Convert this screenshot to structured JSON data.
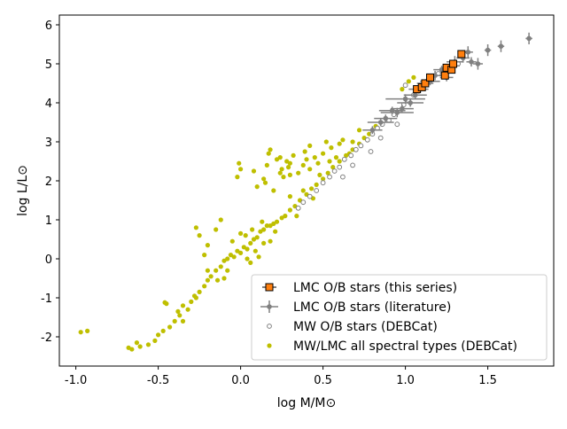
{
  "chart_data": {
    "type": "scatter",
    "title": "",
    "xlabel": "log M/M⊙",
    "ylabel": "log L/L⊙",
    "xlim": [
      -1.1,
      1.9
    ],
    "ylim": [
      -2.75,
      6.25
    ],
    "grid": false,
    "legend_position": "lower-right",
    "x_ticks": [
      {
        "value": -1.0,
        "label": "-1.0"
      },
      {
        "value": -0.5,
        "label": "-0.5"
      },
      {
        "value": 0.0,
        "label": "0.0"
      },
      {
        "value": 0.5,
        "label": "0.5"
      },
      {
        "value": 1.0,
        "label": "1.0"
      },
      {
        "value": 1.5,
        "label": "1.5"
      }
    ],
    "y_ticks": [
      {
        "value": -2,
        "label": "-2"
      },
      {
        "value": -1,
        "label": "-1"
      },
      {
        "value": 0,
        "label": "0"
      },
      {
        "value": 1,
        "label": "1"
      },
      {
        "value": 2,
        "label": "2"
      },
      {
        "value": 3,
        "label": "3"
      },
      {
        "value": 4,
        "label": "4"
      },
      {
        "value": 5,
        "label": "5"
      },
      {
        "value": 6,
        "label": "6"
      }
    ],
    "series": [
      {
        "name": "MW/LMC all spectral types (DEBCat)",
        "marker": "dot",
        "color": "#bfbf00",
        "points": [
          [
            -0.97,
            -1.88
          ],
          [
            -0.93,
            -1.85
          ],
          [
            -0.68,
            -2.28
          ],
          [
            -0.66,
            -2.32
          ],
          [
            -0.63,
            -2.15
          ],
          [
            -0.61,
            -2.25
          ],
          [
            -0.56,
            -2.2
          ],
          [
            -0.52,
            -2.1
          ],
          [
            -0.5,
            -1.95
          ],
          [
            -0.47,
            -1.85
          ],
          [
            -0.46,
            -1.12
          ],
          [
            -0.45,
            -1.15
          ],
          [
            -0.43,
            -1.75
          ],
          [
            -0.4,
            -1.6
          ],
          [
            -0.37,
            -1.45
          ],
          [
            -0.35,
            -1.2
          ],
          [
            -0.32,
            -1.3
          ],
          [
            -0.3,
            -1.1
          ],
          [
            -0.28,
            -0.95
          ],
          [
            -0.25,
            -0.85
          ],
          [
            -0.22,
            -0.7
          ],
          [
            -0.2,
            -0.55
          ],
          [
            -0.18,
            -0.45
          ],
          [
            -0.15,
            -0.3
          ],
          [
            -0.14,
            -0.55
          ],
          [
            -0.12,
            -0.2
          ],
          [
            -0.1,
            -0.05
          ],
          [
            -0.08,
            0.0
          ],
          [
            -0.06,
            0.1
          ],
          [
            -0.04,
            0.05
          ],
          [
            -0.02,
            0.2
          ],
          [
            0.0,
            0.15
          ],
          [
            0.02,
            0.3
          ],
          [
            0.04,
            0.25
          ],
          [
            0.06,
            0.4
          ],
          [
            0.08,
            0.5
          ],
          [
            0.1,
            0.55
          ],
          [
            0.12,
            0.7
          ],
          [
            0.14,
            0.75
          ],
          [
            0.16,
            0.85
          ],
          [
            0.18,
            0.85
          ],
          [
            0.2,
            0.9
          ],
          [
            0.22,
            0.95
          ],
          [
            0.25,
            1.05
          ],
          [
            0.27,
            1.1
          ],
          [
            0.3,
            1.25
          ],
          [
            0.33,
            1.35
          ],
          [
            0.36,
            1.5
          ],
          [
            0.4,
            1.65
          ],
          [
            0.43,
            1.8
          ],
          [
            0.46,
            1.9
          ],
          [
            0.5,
            2.05
          ],
          [
            0.53,
            2.2
          ],
          [
            0.56,
            2.35
          ],
          [
            0.6,
            2.5
          ],
          [
            0.64,
            2.65
          ],
          [
            0.68,
            2.8
          ],
          [
            0.72,
            2.95
          ],
          [
            0.78,
            3.2
          ],
          [
            0.82,
            3.4
          ],
          [
            -0.2,
            0.35
          ],
          [
            -0.25,
            0.6
          ],
          [
            -0.27,
            0.8
          ],
          [
            -0.22,
            0.1
          ],
          [
            -0.05,
            0.45
          ],
          [
            0.0,
            0.65
          ],
          [
            -0.15,
            0.75
          ],
          [
            -0.12,
            1.0
          ],
          [
            -0.01,
            2.45
          ],
          [
            0.0,
            2.3
          ],
          [
            -0.02,
            2.1
          ],
          [
            0.08,
            2.25
          ],
          [
            0.1,
            1.85
          ],
          [
            0.14,
            2.05
          ],
          [
            0.15,
            1.95
          ],
          [
            0.16,
            2.4
          ],
          [
            0.17,
            2.7
          ],
          [
            0.18,
            2.8
          ],
          [
            0.2,
            1.75
          ],
          [
            0.22,
            2.55
          ],
          [
            0.24,
            2.6
          ],
          [
            0.25,
            2.3
          ],
          [
            0.26,
            2.1
          ],
          [
            0.28,
            2.5
          ],
          [
            0.29,
            2.35
          ],
          [
            0.3,
            2.15
          ],
          [
            0.32,
            2.65
          ],
          [
            0.35,
            2.2
          ],
          [
            0.38,
            2.4
          ],
          [
            0.4,
            2.55
          ],
          [
            0.42,
            2.3
          ],
          [
            0.45,
            2.6
          ],
          [
            0.47,
            2.45
          ],
          [
            0.5,
            2.7
          ],
          [
            0.52,
            3.0
          ],
          [
            0.55,
            2.85
          ],
          [
            0.58,
            2.6
          ],
          [
            0.6,
            2.95
          ],
          [
            0.62,
            3.05
          ],
          [
            0.68,
            3.0
          ],
          [
            0.72,
            3.3
          ],
          [
            0.98,
            4.35
          ],
          [
            1.02,
            4.55
          ],
          [
            1.05,
            4.65
          ],
          [
            -0.08,
            -0.3
          ],
          [
            -0.1,
            -0.5
          ],
          [
            0.04,
            0.0
          ],
          [
            0.06,
            -0.1
          ],
          [
            0.09,
            0.2
          ],
          [
            0.11,
            0.05
          ],
          [
            0.14,
            0.4
          ],
          [
            0.18,
            0.45
          ],
          [
            0.03,
            0.6
          ],
          [
            0.07,
            0.75
          ],
          [
            0.13,
            0.95
          ],
          [
            0.21,
            0.7
          ],
          [
            -0.35,
            -1.6
          ],
          [
            -0.38,
            -1.35
          ],
          [
            -0.27,
            -1.0
          ],
          [
            -0.2,
            -0.3
          ],
          [
            0.3,
            1.6
          ],
          [
            0.34,
            1.1
          ],
          [
            0.38,
            1.75
          ],
          [
            0.44,
            1.55
          ],
          [
            0.48,
            2.15
          ],
          [
            0.54,
            2.5
          ],
          [
            0.66,
            2.7
          ],
          [
            0.75,
            3.1
          ],
          [
            0.42,
            2.9
          ],
          [
            0.39,
            2.75
          ],
          [
            0.3,
            2.45
          ],
          [
            0.24,
            2.2
          ]
        ]
      },
      {
        "name": "MW O/B stars (DEBCat)",
        "marker": "open-circle",
        "color": "#808080",
        "points": [
          [
            0.35,
            1.3
          ],
          [
            0.38,
            1.45
          ],
          [
            0.42,
            1.6
          ],
          [
            0.46,
            1.75
          ],
          [
            0.5,
            1.95
          ],
          [
            0.54,
            2.1
          ],
          [
            0.57,
            2.25
          ],
          [
            0.6,
            2.35
          ],
          [
            0.63,
            2.55
          ],
          [
            0.67,
            2.65
          ],
          [
            0.7,
            2.8
          ],
          [
            0.73,
            2.9
          ],
          [
            0.77,
            3.05
          ],
          [
            0.8,
            3.2
          ],
          [
            0.83,
            3.35
          ],
          [
            0.86,
            3.45
          ],
          [
            0.9,
            3.55
          ],
          [
            0.93,
            3.7
          ],
          [
            0.96,
            3.8
          ],
          [
            0.99,
            3.95
          ],
          [
            1.02,
            4.05
          ],
          [
            1.05,
            4.2
          ],
          [
            1.08,
            4.3
          ],
          [
            1.1,
            4.45
          ],
          [
            1.13,
            4.55
          ],
          [
            1.16,
            4.6
          ],
          [
            1.2,
            4.75
          ],
          [
            1.24,
            4.85
          ],
          [
            1.28,
            4.9
          ],
          [
            1.32,
            5.0
          ],
          [
            0.62,
            2.1
          ],
          [
            0.68,
            2.4
          ],
          [
            0.79,
            2.75
          ],
          [
            0.85,
            3.1
          ],
          [
            0.95,
            3.45
          ],
          [
            1.0,
            4.45
          ]
        ]
      },
      {
        "name": "LMC O/B stars (literature)",
        "marker": "errorbar-dot",
        "color": "#808080",
        "points": [
          [
            0.85,
            3.5,
            0.08,
            0.1
          ],
          [
            0.88,
            3.6,
            0.07,
            0.1
          ],
          [
            0.92,
            3.8,
            0.08,
            0.1
          ],
          [
            0.95,
            3.75,
            0.1,
            0.12
          ],
          [
            0.98,
            3.85,
            0.07,
            0.1
          ],
          [
            1.0,
            4.1,
            0.12,
            0.12
          ],
          [
            1.03,
            4.0,
            0.08,
            0.1
          ],
          [
            1.06,
            4.2,
            0.07,
            0.1
          ],
          [
            1.08,
            4.35,
            0.06,
            0.1
          ],
          [
            1.12,
            4.5,
            0.05,
            0.1
          ],
          [
            1.15,
            4.55,
            0.06,
            0.1
          ],
          [
            1.18,
            4.7,
            0.05,
            0.12
          ],
          [
            1.22,
            4.85,
            0.05,
            0.1
          ],
          [
            1.25,
            4.65,
            0.04,
            0.1
          ],
          [
            1.28,
            4.95,
            0.05,
            0.12
          ],
          [
            1.3,
            5.05,
            0.05,
            0.15
          ],
          [
            1.35,
            5.15,
            0.04,
            0.12
          ],
          [
            1.38,
            5.3,
            0.03,
            0.15
          ],
          [
            1.4,
            5.05,
            0.03,
            0.12
          ],
          [
            1.44,
            5.0,
            0.03,
            0.15
          ],
          [
            1.5,
            5.35,
            0.02,
            0.15
          ],
          [
            1.58,
            5.45,
            0.02,
            0.15
          ],
          [
            1.75,
            5.65,
            0.02,
            0.15
          ],
          [
            0.8,
            3.3,
            0.06,
            0.1
          ]
        ]
      },
      {
        "name": "LMC O/B stars (this series)",
        "marker": "square",
        "color": "#ff7f0e",
        "points": [
          [
            1.07,
            4.35,
            0.02,
            0.05
          ],
          [
            1.1,
            4.4,
            0.02,
            0.05
          ],
          [
            1.12,
            4.5,
            0.02,
            0.05
          ],
          [
            1.15,
            4.65,
            0.02,
            0.05
          ],
          [
            1.24,
            4.7,
            0.02,
            0.05
          ],
          [
            1.25,
            4.9,
            0.02,
            0.05
          ],
          [
            1.28,
            4.85,
            0.02,
            0.05
          ],
          [
            1.29,
            5.0,
            0.02,
            0.05
          ],
          [
            1.34,
            5.25,
            0.02,
            0.05
          ]
        ]
      }
    ],
    "legend": [
      {
        "label": "LMC O/B stars (this series)",
        "marker": "square"
      },
      {
        "label": "LMC O/B stars (literature)",
        "marker": "errorbar-dot"
      },
      {
        "label": "MW O/B stars (DEBCat)",
        "marker": "open-circle"
      },
      {
        "label": "MW/LMC all spectral types (DEBCat)",
        "marker": "dot"
      }
    ]
  }
}
